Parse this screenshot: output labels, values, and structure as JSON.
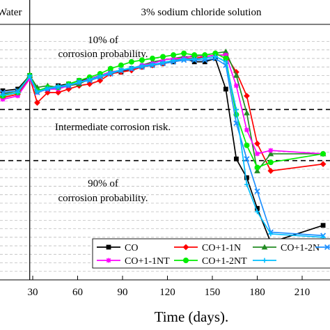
{
  "chart_data": {
    "type": "line",
    "xlabel": "Time (days).",
    "x_ticks": [
      "30",
      "60",
      "90",
      "120",
      "150",
      "180",
      "210"
    ],
    "xlim": [
      10,
      225
    ],
    "ylim": [
      -700,
      50
    ],
    "region_labels": {
      "left": "Water",
      "right": "3% sodium chloride solution"
    },
    "annotations": {
      "low_line1": "10% of",
      "low_line2": "corrosion probability.",
      "mid": "Intermediate corrosion risk.",
      "high_line1": "90% of",
      "high_line2": "corrosion probability."
    },
    "thresholds": [
      -200,
      -350
    ],
    "divider_x": 28,
    "grid": "dashed horizontal",
    "legend_position": "bottom-right",
    "series": [
      {
        "name": "CO",
        "color": "#000000",
        "marker": "square",
        "x": [
          10,
          20,
          28,
          33,
          40,
          47,
          54,
          61,
          68,
          75,
          82,
          89,
          96,
          103,
          110,
          117,
          124,
          131,
          138,
          145,
          152,
          159,
          166,
          173,
          180,
          189,
          224
        ],
        "y": [
          -145,
          -140,
          -100,
          -145,
          -140,
          -130,
          -125,
          -115,
          -110,
          -100,
          -90,
          -90,
          -80,
          -75,
          -70,
          -65,
          -60,
          -50,
          -60,
          -60,
          -50,
          -140,
          -345,
          -400,
          -490,
          -590,
          -540
        ]
      },
      {
        "name": "CO+1-1N",
        "color": "#ff0000",
        "marker": "diamond",
        "x": [
          10,
          20,
          28,
          33,
          40,
          47,
          54,
          61,
          68,
          75,
          82,
          89,
          96,
          103,
          110,
          117,
          124,
          131,
          138,
          145,
          152,
          159,
          166,
          173,
          180,
          189,
          224
        ],
        "y": [
          -165,
          -155,
          -105,
          -180,
          -150,
          -150,
          -140,
          -130,
          -125,
          -115,
          -95,
          -90,
          -85,
          -75,
          -70,
          -65,
          -55,
          -50,
          -50,
          -45,
          -40,
          -40,
          -90,
          -160,
          -300,
          -380,
          -360
        ]
      },
      {
        "name": "CO+1-2N",
        "color": "#228b22",
        "marker": "triangle",
        "x": [
          10,
          20,
          28,
          33,
          40,
          47,
          54,
          61,
          68,
          75,
          82,
          89,
          96,
          103,
          110,
          117,
          124,
          131,
          138,
          145,
          152,
          159,
          166,
          173,
          180,
          189,
          224
        ],
        "y": [
          -155,
          -145,
          -100,
          -135,
          -130,
          -135,
          -130,
          -125,
          -110,
          -100,
          -90,
          -85,
          -80,
          -70,
          -60,
          -55,
          -50,
          -45,
          -45,
          -40,
          -35,
          -30,
          -100,
          -210,
          -380,
          -330,
          -330
        ]
      },
      {
        "name": "CO+1-1NT",
        "color": "#ff00ff",
        "marker": "star",
        "x": [
          10,
          20,
          28,
          33,
          40,
          47,
          54,
          61,
          68,
          75,
          82,
          89,
          96,
          103,
          110,
          117,
          124,
          131,
          138,
          145,
          152,
          159,
          166,
          173,
          180,
          189,
          224
        ],
        "y": [
          -170,
          -160,
          -110,
          -150,
          -140,
          -140,
          -130,
          -120,
          -110,
          -100,
          -90,
          -85,
          -80,
          -70,
          -65,
          -55,
          -50,
          -50,
          -40,
          -45,
          -40,
          -40,
          -130,
          -260,
          -330,
          -320,
          -330
        ]
      },
      {
        "name": "CO+1-2NT",
        "color": "#00ee00",
        "marker": "circle",
        "x": [
          10,
          20,
          28,
          33,
          40,
          47,
          54,
          61,
          68,
          75,
          82,
          89,
          96,
          103,
          110,
          117,
          124,
          131,
          138,
          145,
          152,
          159,
          166,
          173,
          180,
          189,
          224
        ],
        "y": [
          -160,
          -150,
          -100,
          -145,
          -135,
          -135,
          -125,
          -115,
          -105,
          -95,
          -80,
          -70,
          -60,
          -55,
          -50,
          -45,
          -40,
          -35,
          -40,
          -40,
          -35,
          -50,
          -215,
          -305,
          -370,
          -355,
          -330
        ]
      },
      {
        "name": "CO+1-2NT",
        "color": "#1e90ff",
        "marker": "cross",
        "x": [
          10,
          20,
          28,
          33,
          40,
          47,
          54,
          61,
          68,
          75,
          82,
          89,
          96,
          103,
          110,
          117,
          124,
          131,
          138,
          145,
          152,
          159,
          166,
          173,
          180,
          189,
          224
        ],
        "y": [
          -150,
          -145,
          -105,
          -150,
          -140,
          -135,
          -130,
          -120,
          -115,
          -105,
          -95,
          -85,
          -80,
          -75,
          -70,
          -65,
          -60,
          -55,
          -55,
          -55,
          -50,
          -70,
          -240,
          -345,
          -440,
          -560,
          -570
        ]
      },
      {
        "name": "",
        "color": "#00bfff",
        "marker": "plus",
        "x": [
          10,
          20,
          28,
          33,
          40,
          47,
          54,
          61,
          68,
          75,
          82,
          89,
          96,
          103,
          110,
          117,
          124,
          131,
          138,
          145,
          152,
          159,
          166,
          173,
          180,
          189,
          224
        ],
        "y": [
          -158,
          -150,
          -102,
          -148,
          -138,
          -132,
          -128,
          -120,
          -112,
          -102,
          -92,
          -84,
          -78,
          -72,
          -68,
          -62,
          -56,
          -52,
          -52,
          -50,
          -44,
          -60,
          -200,
          -420,
          -500,
          -565,
          -575
        ]
      }
    ]
  }
}
